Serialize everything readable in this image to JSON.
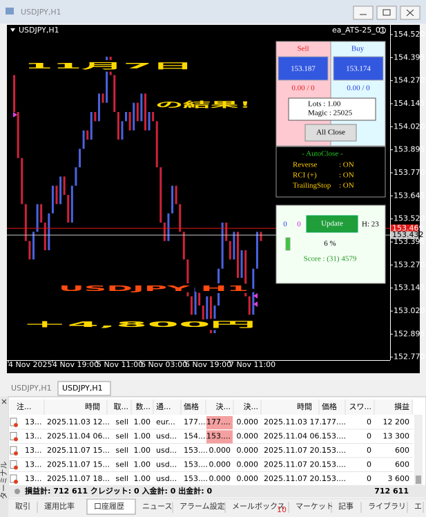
{
  "window": {
    "title": "USDJPY,H1"
  },
  "chart": {
    "symbol": "USDJPY,H1",
    "expert": "ea_ATS-25_01",
    "ylim": [
      152.754,
      154.5725
    ],
    "yticks": [
      {
        "value": 154.52,
        "label": "154.520"
      },
      {
        "value": 154.395,
        "label": "154.395"
      },
      {
        "value": 154.27,
        "label": "154.270"
      },
      {
        "value": 154.145,
        "label": "154.145"
      },
      {
        "value": 154.02,
        "label": "154.020"
      },
      {
        "value": 153.895,
        "label": "153.895"
      },
      {
        "value": 153.77,
        "label": "153.770"
      },
      {
        "value": 153.645,
        "label": "153.645"
      },
      {
        "value": 153.52,
        "label": "153.520"
      },
      {
        "value": 153.395,
        "label": "153.395"
      },
      {
        "value": 153.27,
        "label": "153.270"
      },
      {
        "value": 153.145,
        "label": "153.145"
      },
      {
        "value": 153.02,
        "label": "153.020"
      },
      {
        "value": 152.895,
        "label": "152.895"
      },
      {
        "value": 152.77,
        "label": "152.770"
      }
    ],
    "time_labels": [
      "4 Nov 2025",
      "4 Nov 19:00",
      "5 Nov 11:00",
      "6 Nov 03:00",
      "6 Nov 19:00",
      "7 Nov 11:00"
    ],
    "closes": [
      154.3,
      154.1,
      153.85,
      153.6,
      153.4,
      153.3,
      153.45,
      153.6,
      153.5,
      153.35,
      153.55,
      153.7,
      153.6,
      153.75,
      153.65,
      153.5,
      153.7,
      153.8,
      153.9,
      154.0,
      153.95,
      154.1,
      154.05,
      154.2,
      154.15,
      154.4,
      154.3,
      154.1,
      153.95,
      154.05,
      154.1,
      154.0,
      154.15,
      154.05,
      154.2,
      154.0,
      154.1,
      154.05,
      153.8,
      153.5,
      153.4,
      153.55,
      153.7,
      153.6,
      153.45,
      153.3,
      153.1,
      153.0,
      153.15,
      153.05,
      152.95,
      153.1,
      152.9,
      153.05,
      153.25,
      153.5,
      153.4,
      153.3,
      153.45,
      153.2,
      153.35,
      153.1,
      153.0,
      153.25,
      153.45,
      153.4
    ],
    "up_color": "#4a63e0",
    "down_color": "#d0223a",
    "bid_line": {
      "value": 153.469,
      "color": "#e01818"
    },
    "ask_line": {
      "value": 153.432,
      "color": "#c8c8c8"
    }
  },
  "overlay": {
    "date": "11月7日",
    "result": "の結果！",
    "pair": "USDJPY H1",
    "profit": "＋4,800円"
  },
  "trade_panel": {
    "sell": "Sell",
    "buy": "Buy",
    "sell_price": "153.187",
    "buy_price": "153.174",
    "sell_pl": "0.00 / 0",
    "buy_pl": "0.00 / 0",
    "lots": "Lots : 1.00",
    "magic": "Magic : 25025",
    "close_button": "All Close"
  },
  "autoclose": {
    "title": "- AutoClose -",
    "rows": [
      [
        "Reverse",
        ": ON"
      ],
      [
        "RCI (+)",
        ": ON"
      ],
      [
        "TrailingStop",
        ": ON"
      ]
    ]
  },
  "status": {
    "count_a": "0",
    "count_b": "0",
    "update": "Update",
    "hours": "H: 23",
    "percent": "6 %",
    "score": "Score : (31) 4579"
  },
  "chart_tabs": {
    "tabs": [
      "USDJPY,H1",
      "USDJPY,H1"
    ],
    "active_tab": 1
  },
  "terminal": {
    "side_title": "ターミナル",
    "columns": [
      "注...",
      "時間",
      "取...",
      "数...",
      "通...",
      "価格",
      "決...",
      "決...",
      "時間",
      "価格",
      "スワ...",
      "損益"
    ],
    "rows": [
      [
        "13...",
        "2025.11.03 12...",
        "sell",
        "1.00",
        "eur...",
        "177....",
        "177....",
        "0.000",
        "2025.11.03 17...",
        "177....",
        "0",
        "12 200"
      ],
      [
        "13...",
        "2025.11.04 06...",
        "sell",
        "1.00",
        "usd...",
        "154....",
        "153....",
        "0.000",
        "2025.11.04 06...",
        "153....",
        "0",
        "13 300"
      ],
      [
        "13...",
        "2025.11.07 15...",
        "sell",
        "1.00",
        "usd...",
        "153....",
        "0.000",
        "0.000",
        "2025.11.07 20...",
        "153....",
        "0",
        "600"
      ],
      [
        "13...",
        "2025.11.07 15...",
        "sell",
        "1.00",
        "usd...",
        "153....",
        "0.000",
        "0.000",
        "2025.11.07 20...",
        "153....",
        "0",
        "600"
      ],
      [
        "13...",
        "2025.11.07 18...",
        "sell",
        "1.00",
        "usd...",
        "153....",
        "0.000",
        "0.000",
        "2025.11.07 20...",
        "153....",
        "0",
        "3 600"
      ]
    ],
    "highlighted_cells": [
      [
        0,
        6
      ],
      [
        1,
        6
      ]
    ],
    "summary": "損益計: 712 611  クレジット: 0  入金計: 0  出金計: 0",
    "total": "712 611",
    "tabs": [
      "取引",
      "運用比率",
      "口座履歴",
      "ニュース",
      "アラーム設定",
      "メールボックス",
      "マーケット",
      "記事",
      "ライブラリ",
      "エ"
    ],
    "mail_badge": "10",
    "active_tab": 2
  }
}
